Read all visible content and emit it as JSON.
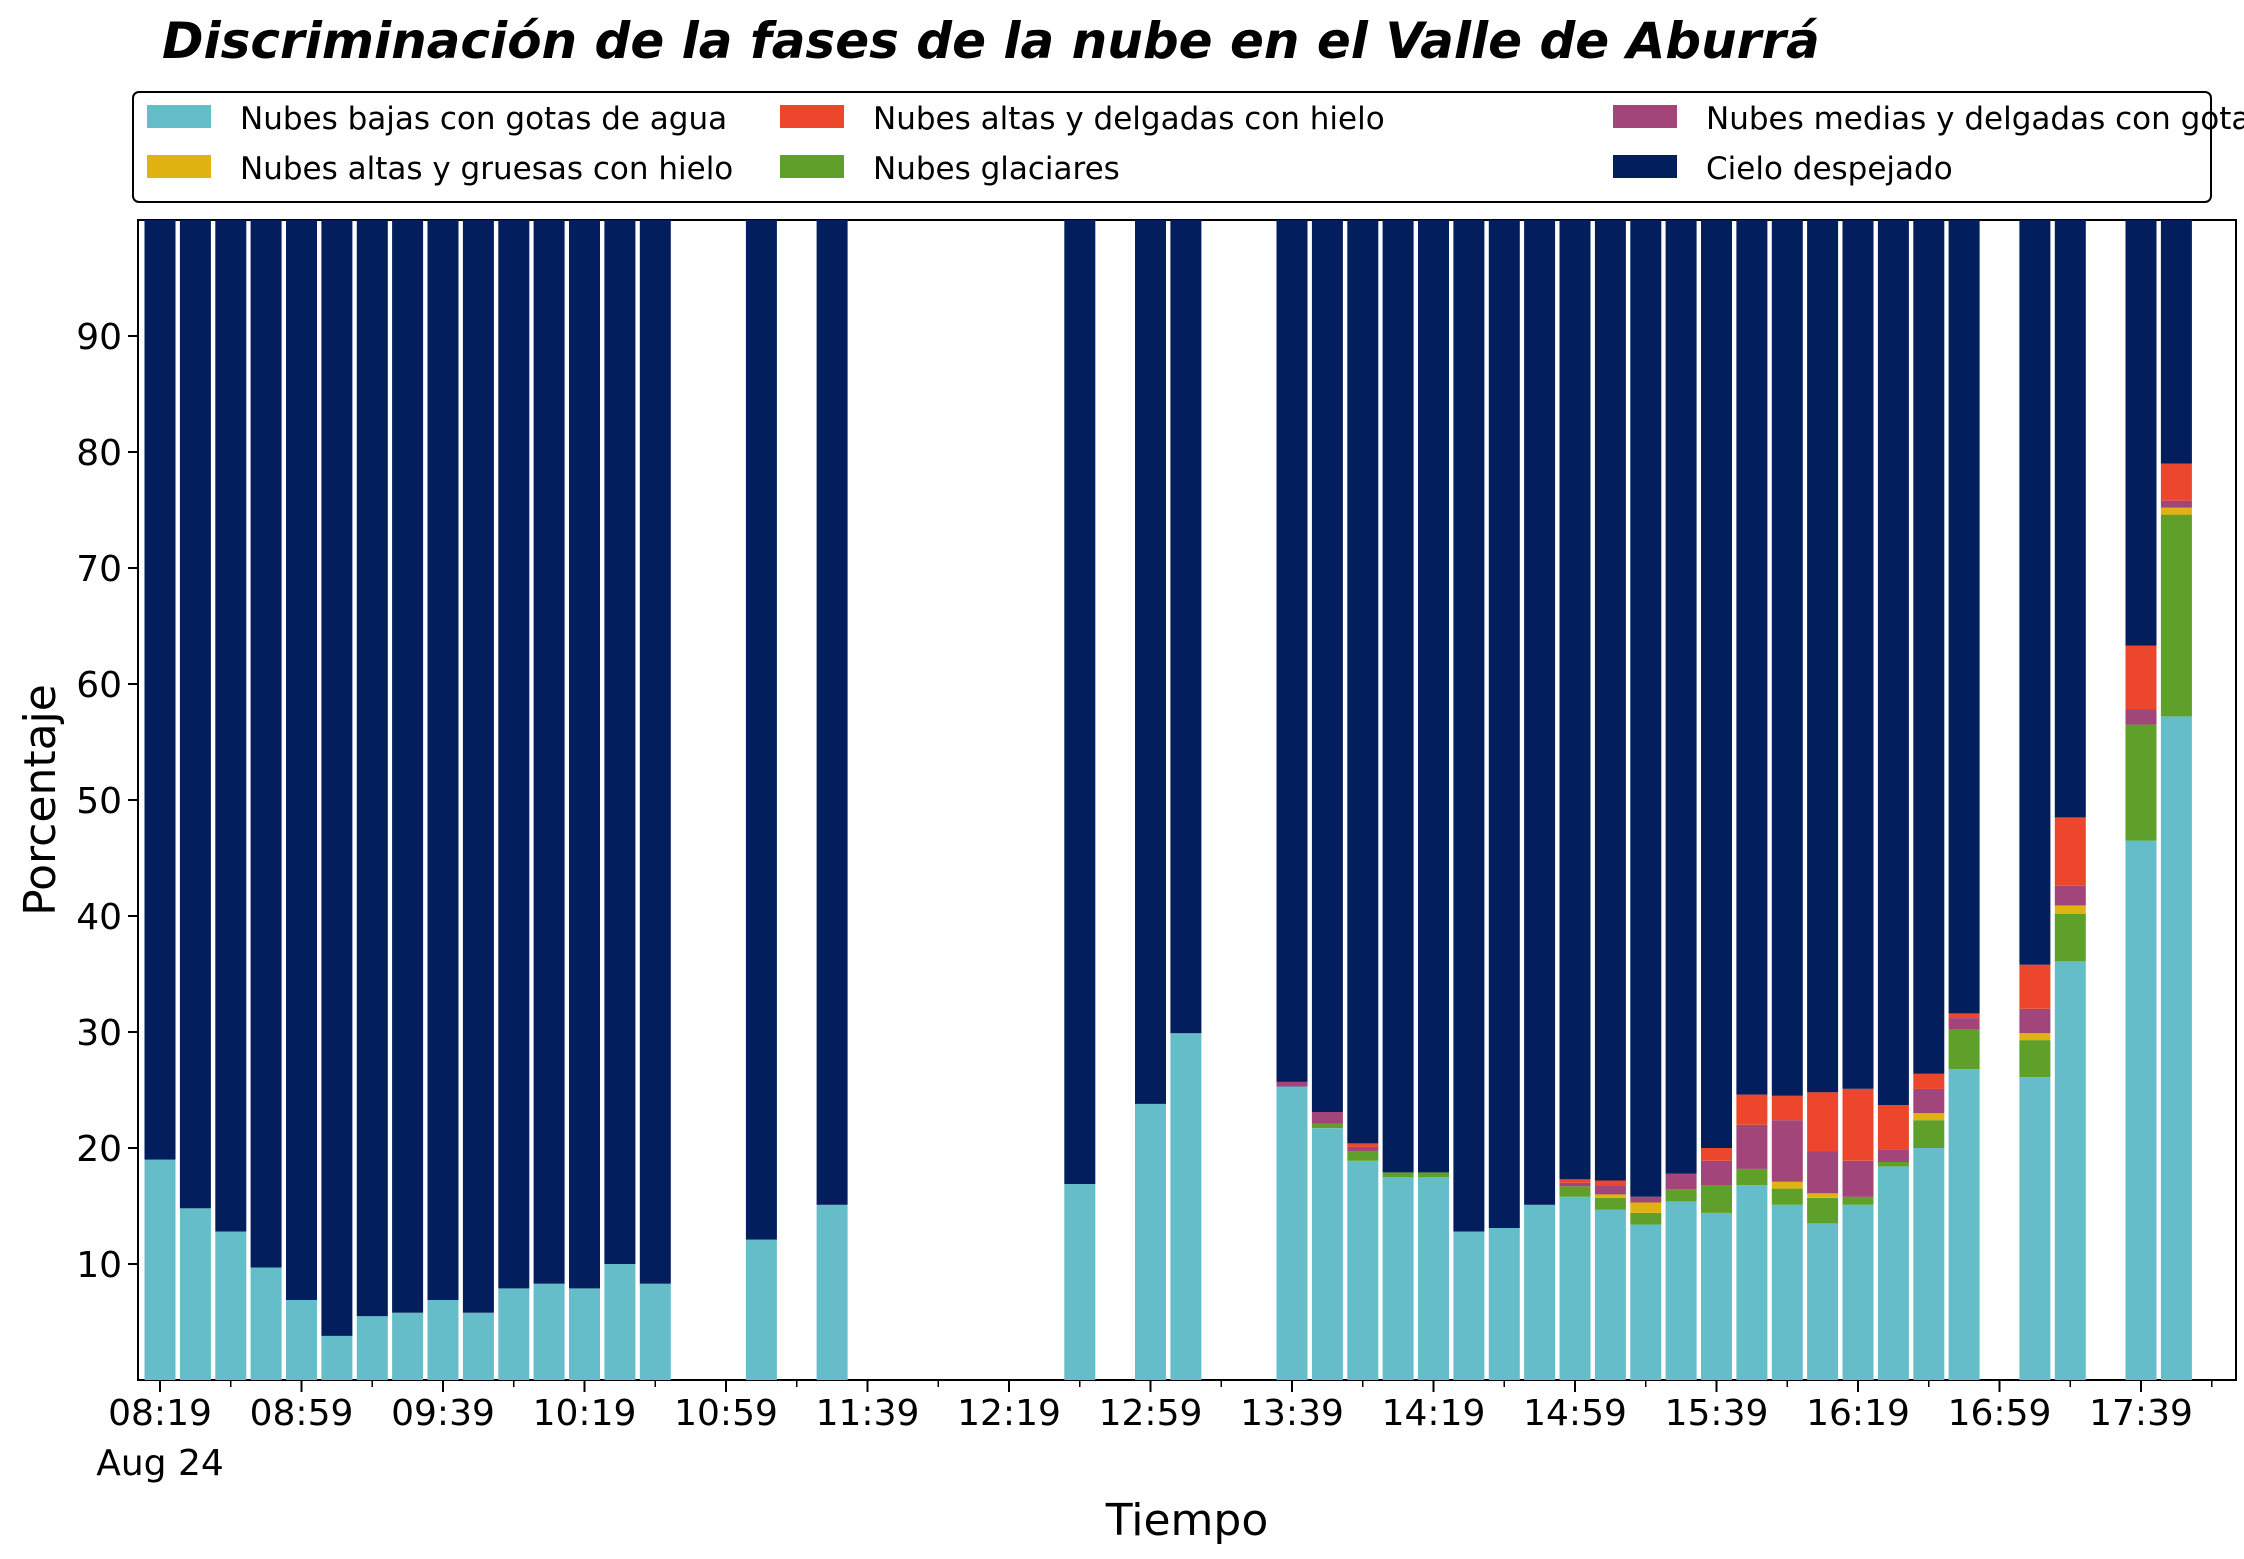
{
  "chart_data": {
    "type": "bar",
    "stacked": true,
    "title": "Discriminación de la fases de la nube en el Valle de Aburrá",
    "xlabel": "Tiempo",
    "ylabel": "Porcentaje",
    "ylim": [
      0,
      100
    ],
    "y_ticks": [
      10,
      20,
      30,
      40,
      50,
      60,
      70,
      80,
      90
    ],
    "x_tick_labels": [
      "08:19",
      "08:59",
      "09:39",
      "10:19",
      "10:59",
      "11:39",
      "12:19",
      "12:59",
      "13:39",
      "14:19",
      "14:59",
      "15:39",
      "16:19",
      "16:59",
      "17:39"
    ],
    "x_date_label": "Aug 24",
    "grid": false,
    "legend_position": "top",
    "legend": [
      {
        "name": "Nubes bajas con gotas de agua",
        "color": "#65bdc9"
      },
      {
        "name": "Nubes altas y gruesas con hielo",
        "color": "#e0b313"
      },
      {
        "name": "Nubes altas y delgadas con hielo",
        "color": "#ec472c"
      },
      {
        "name": "Nubes glaciares",
        "color": "#5ea02a"
      },
      {
        "name": "Nubes medias y delgadas con gotas de agua",
        "color": "#a1457a"
      },
      {
        "name": "Cielo despejado",
        "color": "#021e5c"
      }
    ],
    "series_order": [
      "bajas",
      "glaciares",
      "gruesas_hielo",
      "medias",
      "delgadas_hielo",
      "despejado"
    ],
    "colors": {
      "bajas": "#65bdc9",
      "glaciares": "#5ea02a",
      "gruesas_hielo": "#e0b313",
      "medias": "#a1457a",
      "delgadas_hielo": "#ec472c",
      "despejado": "#021e5c"
    },
    "bars": [
      {
        "time": "08:19",
        "bajas": 19,
        "glaciares": 0,
        "gruesas_hielo": 0,
        "medias": 0,
        "delgadas_hielo": 0,
        "despejado": 81
      },
      {
        "time": "08:29",
        "bajas": 14.8,
        "glaciares": 0,
        "gruesas_hielo": 0,
        "medias": 0,
        "delgadas_hielo": 0,
        "despejado": 85.2
      },
      {
        "time": "08:39",
        "bajas": 12.8,
        "glaciares": 0,
        "gruesas_hielo": 0,
        "medias": 0,
        "delgadas_hielo": 0,
        "despejado": 87.2
      },
      {
        "time": "08:49",
        "bajas": 9.7,
        "glaciares": 0,
        "gruesas_hielo": 0,
        "medias": 0,
        "delgadas_hielo": 0,
        "despejado": 90.3
      },
      {
        "time": "08:59",
        "bajas": 6.9,
        "glaciares": 0,
        "gruesas_hielo": 0,
        "medias": 0,
        "delgadas_hielo": 0,
        "despejado": 93.1
      },
      {
        "time": "09:09",
        "bajas": 3.8,
        "glaciares": 0,
        "gruesas_hielo": 0,
        "medias": 0,
        "delgadas_hielo": 0,
        "despejado": 96.2
      },
      {
        "time": "09:19",
        "bajas": 5.5,
        "glaciares": 0,
        "gruesas_hielo": 0,
        "medias": 0,
        "delgadas_hielo": 0,
        "despejado": 94.5
      },
      {
        "time": "09:29",
        "bajas": 5.8,
        "glaciares": 0,
        "gruesas_hielo": 0,
        "medias": 0,
        "delgadas_hielo": 0,
        "despejado": 94.2
      },
      {
        "time": "09:39",
        "bajas": 6.9,
        "glaciares": 0,
        "gruesas_hielo": 0,
        "medias": 0,
        "delgadas_hielo": 0,
        "despejado": 93.1
      },
      {
        "time": "09:49",
        "bajas": 5.8,
        "glaciares": 0,
        "gruesas_hielo": 0,
        "medias": 0,
        "delgadas_hielo": 0,
        "despejado": 94.2
      },
      {
        "time": "09:59",
        "bajas": 7.9,
        "glaciares": 0,
        "gruesas_hielo": 0,
        "medias": 0,
        "delgadas_hielo": 0,
        "despejado": 92.1
      },
      {
        "time": "10:09",
        "bajas": 8.3,
        "glaciares": 0,
        "gruesas_hielo": 0,
        "medias": 0,
        "delgadas_hielo": 0,
        "despejado": 91.7
      },
      {
        "time": "10:19",
        "bajas": 7.9,
        "glaciares": 0,
        "gruesas_hielo": 0,
        "medias": 0,
        "delgadas_hielo": 0,
        "despejado": 92.1
      },
      {
        "time": "10:29",
        "bajas": 10,
        "glaciares": 0,
        "gruesas_hielo": 0,
        "medias": 0,
        "delgadas_hielo": 0,
        "despejado": 90
      },
      {
        "time": "10:39",
        "bajas": 8.3,
        "glaciares": 0,
        "gruesas_hielo": 0,
        "medias": 0,
        "delgadas_hielo": 0,
        "despejado": 91.7
      },
      {
        "time": "11:09",
        "bajas": 12.1,
        "glaciares": 0,
        "gruesas_hielo": 0,
        "medias": 0,
        "delgadas_hielo": 0,
        "despejado": 87.9
      },
      {
        "time": "11:29",
        "bajas": 15.1,
        "glaciares": 0,
        "gruesas_hielo": 0,
        "medias": 0,
        "delgadas_hielo": 0,
        "despejado": 84.9
      },
      {
        "time": "12:39",
        "bajas": 16.9,
        "glaciares": 0,
        "gruesas_hielo": 0,
        "medias": 0,
        "delgadas_hielo": 0,
        "despejado": 83.1
      },
      {
        "time": "12:59",
        "bajas": 23.8,
        "glaciares": 0,
        "gruesas_hielo": 0,
        "medias": 0,
        "delgadas_hielo": 0,
        "despejado": 76.2
      },
      {
        "time": "13:09",
        "bajas": 29.9,
        "glaciares": 0,
        "gruesas_hielo": 0,
        "medias": 0,
        "delgadas_hielo": 0,
        "despejado": 70.1
      },
      {
        "time": "13:39",
        "bajas": 25.3,
        "glaciares": 0,
        "gruesas_hielo": 0,
        "medias": 0.4,
        "delgadas_hielo": 0,
        "despejado": 74.3
      },
      {
        "time": "13:49",
        "bajas": 21.7,
        "glaciares": 0.4,
        "gruesas_hielo": 0,
        "medias": 1,
        "delgadas_hielo": 0,
        "despejado": 76.9
      },
      {
        "time": "13:59",
        "bajas": 18.9,
        "glaciares": 0.8,
        "gruesas_hielo": 0,
        "medias": 0.4,
        "delgadas_hielo": 0.3,
        "despejado": 79.6
      },
      {
        "time": "14:09",
        "bajas": 17.5,
        "glaciares": 0.4,
        "gruesas_hielo": 0,
        "medias": 0,
        "delgadas_hielo": 0,
        "despejado": 82.1
      },
      {
        "time": "14:19",
        "bajas": 17.5,
        "glaciares": 0.4,
        "gruesas_hielo": 0,
        "medias": 0,
        "delgadas_hielo": 0,
        "despejado": 82.1
      },
      {
        "time": "14:29",
        "bajas": 12.8,
        "glaciares": 0,
        "gruesas_hielo": 0,
        "medias": 0,
        "delgadas_hielo": 0,
        "despejado": 87.2
      },
      {
        "time": "14:39",
        "bajas": 13.1,
        "glaciares": 0,
        "gruesas_hielo": 0,
        "medias": 0,
        "delgadas_hielo": 0,
        "despejado": 86.9
      },
      {
        "time": "14:49",
        "bajas": 15.1,
        "glaciares": 0,
        "gruesas_hielo": 0,
        "medias": 0,
        "delgadas_hielo": 0,
        "despejado": 84.9
      },
      {
        "time": "14:59",
        "bajas": 15.8,
        "glaciares": 0.9,
        "gruesas_hielo": 0,
        "medias": 0.3,
        "delgadas_hielo": 0.3,
        "despejado": 82.7
      },
      {
        "time": "15:09",
        "bajas": 14.7,
        "glaciares": 1,
        "gruesas_hielo": 0.3,
        "medias": 0.8,
        "delgadas_hielo": 0.4,
        "despejado": 82.8
      },
      {
        "time": "15:19",
        "bajas": 13.4,
        "glaciares": 1,
        "gruesas_hielo": 0.9,
        "medias": 0.5,
        "delgadas_hielo": 0,
        "despejado": 84.2
      },
      {
        "time": "15:29",
        "bajas": 15.4,
        "glaciares": 1,
        "gruesas_hielo": 0,
        "medias": 1.4,
        "delgadas_hielo": 0,
        "despejado": 82.2
      },
      {
        "time": "15:39",
        "bajas": 14.4,
        "glaciares": 2.4,
        "gruesas_hielo": 0,
        "medias": 2.1,
        "delgadas_hielo": 1.1,
        "despejado": 80
      },
      {
        "time": "15:49",
        "bajas": 16.8,
        "glaciares": 1.4,
        "gruesas_hielo": 0,
        "medias": 3.8,
        "delgadas_hielo": 2.6,
        "despejado": 75.4
      },
      {
        "time": "15:59",
        "bajas": 15.1,
        "glaciares": 1.4,
        "gruesas_hielo": 0.6,
        "medias": 5.3,
        "delgadas_hielo": 2.1,
        "despejado": 75.5
      },
      {
        "time": "16:09",
        "bajas": 13.5,
        "glaciares": 2.2,
        "gruesas_hielo": 0.4,
        "medias": 3.6,
        "delgadas_hielo": 5.1,
        "despejado": 75.2
      },
      {
        "time": "16:19",
        "bajas": 15.1,
        "glaciares": 0.7,
        "gruesas_hielo": 0,
        "medias": 3.1,
        "delgadas_hielo": 6.2,
        "despejado": 74.9
      },
      {
        "time": "16:29",
        "bajas": 18.4,
        "glaciares": 0.4,
        "gruesas_hielo": 0,
        "medias": 1.1,
        "delgadas_hielo": 3.8,
        "despejado": 76.3
      },
      {
        "time": "16:39",
        "bajas": 20,
        "glaciares": 2.4,
        "gruesas_hielo": 0.6,
        "medias": 2.1,
        "delgadas_hielo": 1.3,
        "despejado": 73.6
      },
      {
        "time": "16:49",
        "bajas": 26.8,
        "glaciares": 3.4,
        "gruesas_hielo": 0,
        "medias": 1,
        "delgadas_hielo": 0.4,
        "despejado": 68.4
      },
      {
        "time": "17:09",
        "bajas": 26.1,
        "glaciares": 3.2,
        "gruesas_hielo": 0.6,
        "medias": 2.1,
        "delgadas_hielo": 3.8,
        "despejado": 64.2
      },
      {
        "time": "17:19",
        "bajas": 36.1,
        "glaciares": 4.1,
        "gruesas_hielo": 0.7,
        "medias": 1.7,
        "delgadas_hielo": 5.9,
        "despejado": 51.5
      },
      {
        "time": "17:39",
        "bajas": 46.5,
        "glaciares": 10,
        "gruesas_hielo": 0,
        "medias": 1.3,
        "delgadas_hielo": 5.5,
        "despejado": 36.7
      },
      {
        "time": "17:49",
        "bajas": 57.2,
        "glaciares": 17.4,
        "gruesas_hielo": 0.6,
        "medias": 0.6,
        "delgadas_hielo": 3.2,
        "despejado": 21
      }
    ]
  }
}
